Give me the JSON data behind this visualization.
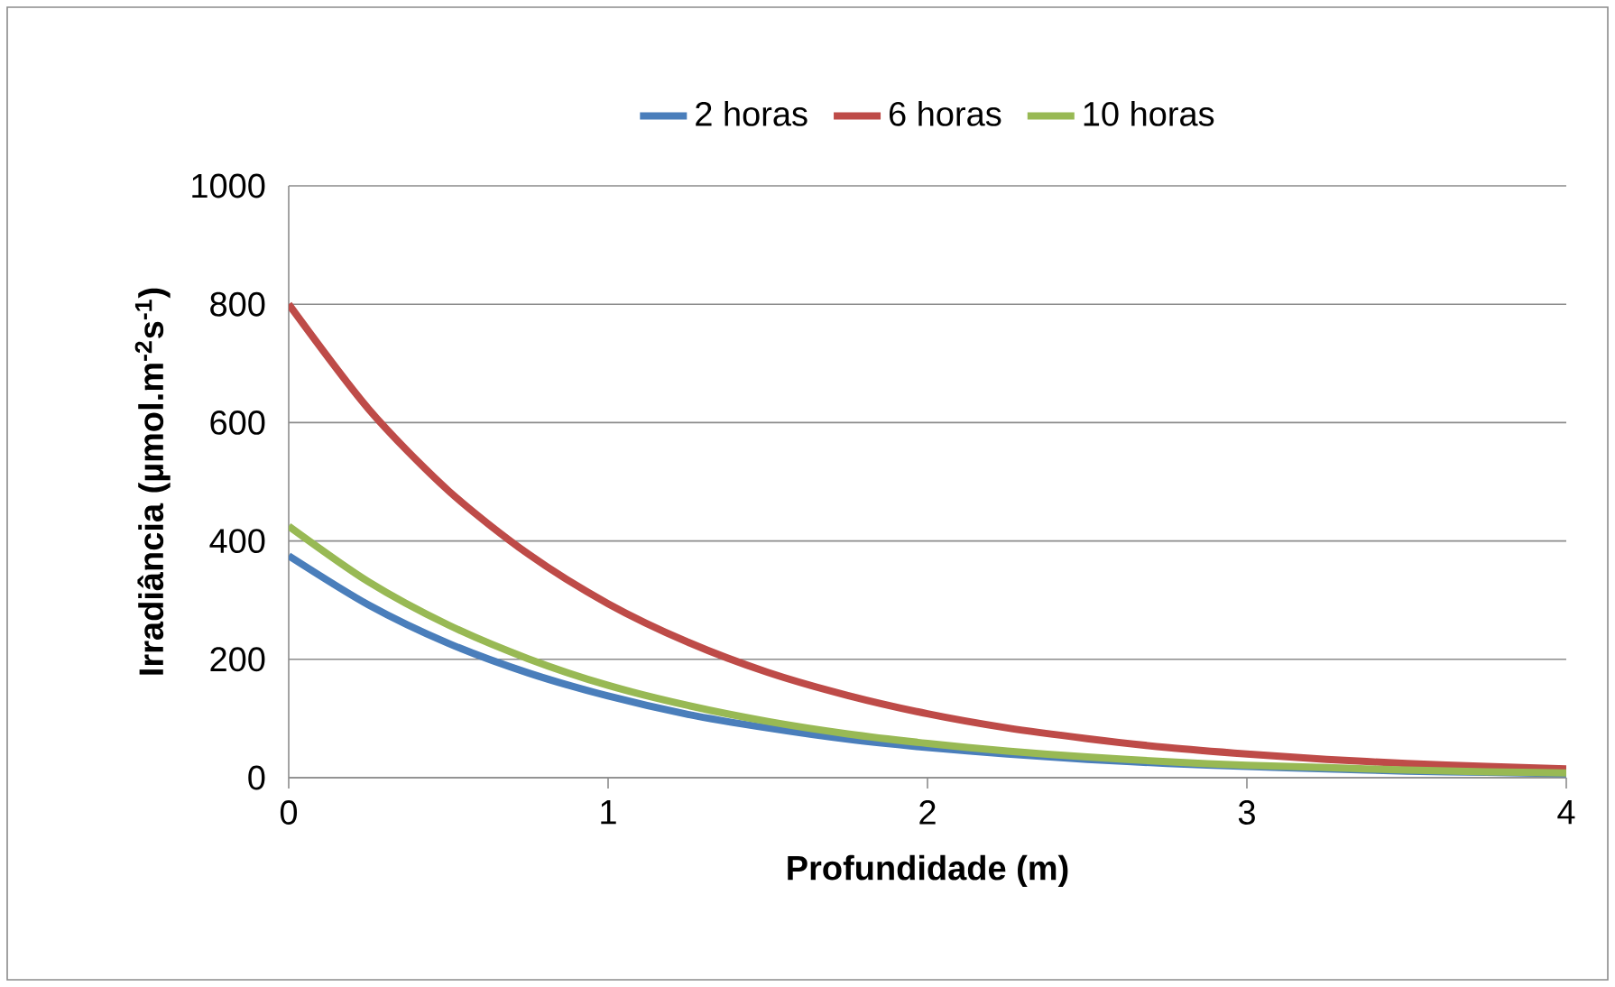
{
  "chart_data": {
    "type": "line",
    "xlabel": "Profundidade (m)",
    "ylabel": "**Irradiância (µmol.m$^{-2}$s$^{-1}$)**",
    "x": [
      0,
      0.25,
      0.5,
      0.75,
      1,
      1.25,
      1.5,
      1.75,
      2,
      2.25,
      2.5,
      2.75,
      3,
      3.25,
      3.5,
      3.75,
      4
    ],
    "series": [
      {
        "name": "2 horas",
        "color": "#4a7ebb",
        "values": [
          375,
          292,
          227,
          177,
          138,
          107,
          84,
          65,
          51,
          40,
          31,
          24,
          19,
          15,
          11,
          9,
          7
        ]
      },
      {
        "name": "6 horas",
        "color": "#be4b48",
        "values": [
          800,
          623,
          485,
          378,
          294,
          229,
          178,
          139,
          108,
          84,
          66,
          51,
          40,
          31,
          24,
          19,
          15
        ]
      },
      {
        "name": "10 horas",
        "color": "#98b954",
        "values": [
          425,
          331,
          258,
          201,
          156,
          122,
          95,
          74,
          58,
          45,
          35,
          27,
          21,
          17,
          13,
          10,
          8
        ]
      }
    ],
    "xlim": [
      0,
      4
    ],
    "ylim": [
      0,
      1000
    ],
    "xticks": [
      0,
      1,
      2,
      3,
      4
    ],
    "yticks": [
      0,
      200,
      400,
      600,
      800,
      1000
    ],
    "grid": "y",
    "legend": "top",
    "marker": "none",
    "line_style": "solid"
  }
}
